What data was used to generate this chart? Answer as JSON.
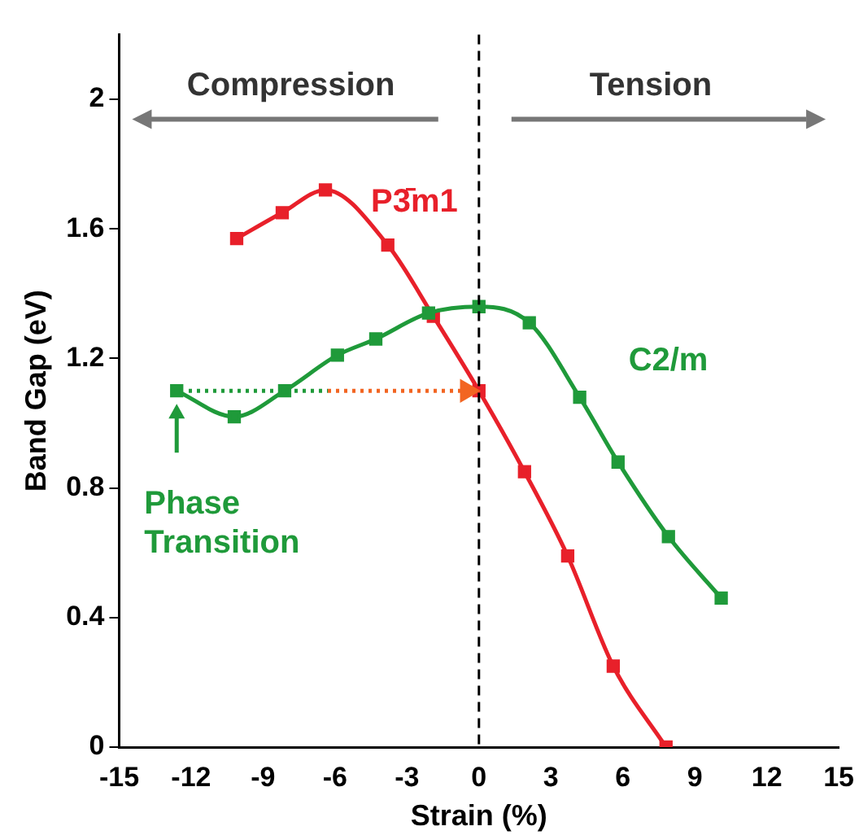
{
  "chart_data": {
    "type": "line",
    "xlabel": "Strain (%)",
    "ylabel": "Band Gap (eV)",
    "xlim": [
      -15,
      15
    ],
    "xticks": [
      -15,
      -12,
      -9,
      -6,
      -3,
      0,
      3,
      6,
      9,
      12,
      15
    ],
    "ylim": [
      0,
      2.2
    ],
    "yticks": [
      0,
      0.4,
      0.8,
      1.2,
      1.6,
      2
    ],
    "series": [
      {
        "name": "P3̄m1",
        "color": "#e8202a",
        "x": [
          -10.1,
          -8.2,
          -6.4,
          -3.8,
          -1.9,
          0,
          1.9,
          3.7,
          5.6,
          7.8
        ],
        "values": [
          1.57,
          1.65,
          1.72,
          1.55,
          1.33,
          1.1,
          0.85,
          0.59,
          0.25,
          0
        ]
      },
      {
        "name": "C2/m",
        "color": "#1f9a3a",
        "x": [
          -12.6,
          -10.2,
          -8.1,
          -5.9,
          -4.3,
          -2.1,
          0,
          2.1,
          4.2,
          5.8,
          7.9,
          10.1
        ],
        "values": [
          1.1,
          1.02,
          1.1,
          1.21,
          1.26,
          1.34,
          1.36,
          1.31,
          1.08,
          0.88,
          0.65,
          0.46
        ]
      },
      {
        "color": "#1f9a3a",
        "x": [
          -12.1,
          -6.3
        ],
        "values": [
          1.1,
          1.1
        ],
        "line_style": "dotted",
        "marker": "none"
      },
      {
        "color": "#f26522",
        "x": [
          -6.3,
          -0.5
        ],
        "values": [
          1.1,
          1.1
        ],
        "line_style": "dotted",
        "marker": "triangle"
      }
    ],
    "ref_lines": [
      {
        "axis": "x",
        "value": 0,
        "line_style": "dashed",
        "color": "#000000"
      }
    ],
    "annotations": [
      "Compression",
      "Tension",
      {
        "text": "Phase Transition",
        "x": -12.6,
        "y": 1.1
      }
    ],
    "marker": "square",
    "line_style": "solid",
    "grid": false,
    "legend": false
  }
}
